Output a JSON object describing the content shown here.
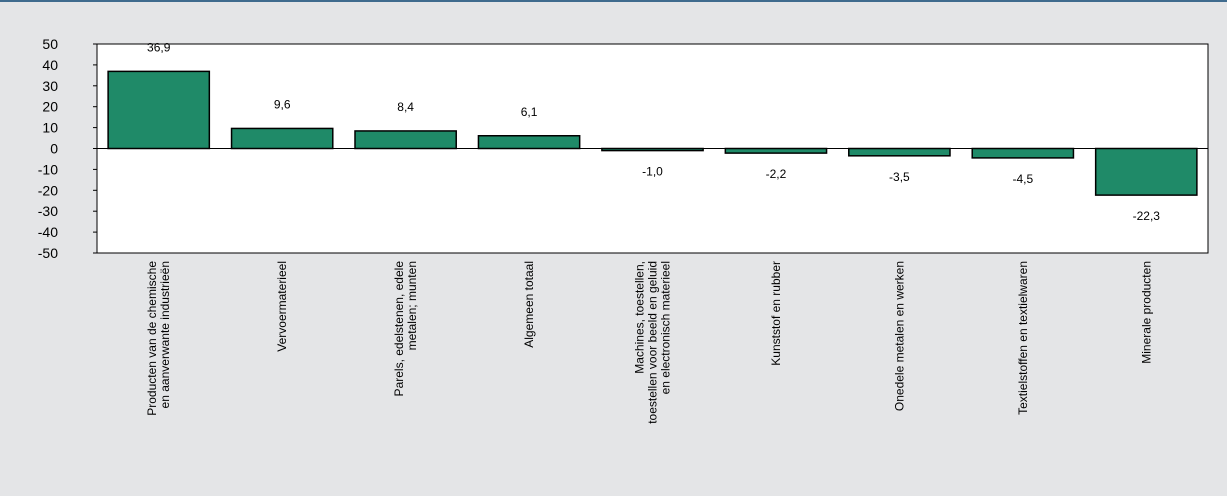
{
  "chart_data": {
    "type": "bar",
    "title": "",
    "xlabel": "",
    "ylabel": "",
    "ylim": [
      -50,
      50
    ],
    "yticks": [
      50,
      40,
      30,
      20,
      10,
      0,
      -10,
      -20,
      -30,
      -40,
      -50
    ],
    "grid": false,
    "legend": "none",
    "bar_color": "#1f8a68",
    "categories": [
      [
        "Producten van de chemische",
        "en aanverwante industrieën"
      ],
      [
        "Vervoermaterieel"
      ],
      [
        "Parels, edelstenen, edele",
        "metalen; munten"
      ],
      [
        "Algemeen totaal"
      ],
      [
        "Machines, toestellen,",
        "toestellen voor beeld en geluid",
        "en electronisch  materieel"
      ],
      [
        "Kunststof en rubber"
      ],
      [
        "Onedele metalen en werken"
      ],
      [
        "Textielstoffen en textielwaren"
      ],
      [
        "Minerale producten"
      ]
    ],
    "values": [
      36.9,
      9.6,
      8.4,
      6.1,
      -1.0,
      -2.2,
      -3.5,
      -4.5,
      -22.3
    ],
    "value_labels": [
      "36,9",
      "9,6",
      "8,4",
      "6,1",
      "-1,0",
      "-2,2",
      "-3,5",
      "-4,5",
      "-22,3"
    ],
    "ytick_labels": [
      "50",
      "40",
      "30",
      "20",
      "10",
      "0",
      "-10",
      "-20",
      "-30",
      "-40",
      "-50"
    ]
  }
}
